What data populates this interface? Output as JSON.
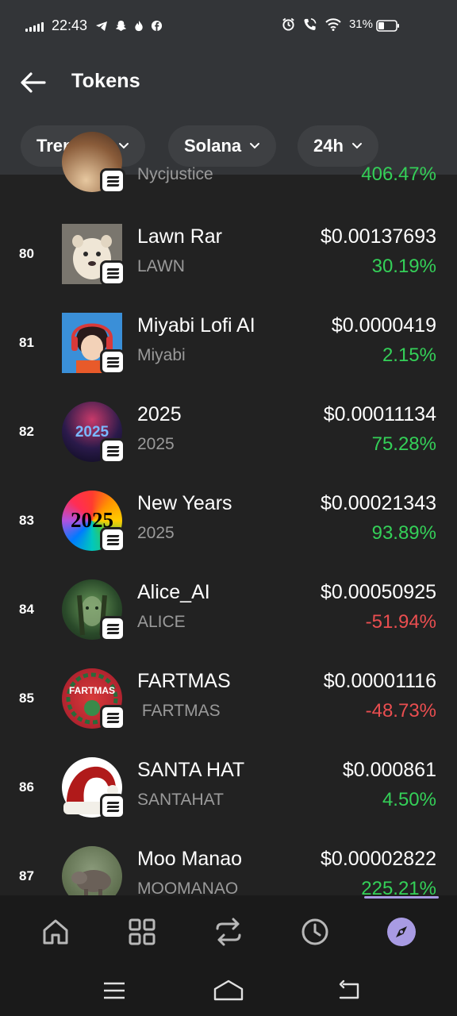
{
  "status_bar": {
    "time": "22:43",
    "battery": "31%",
    "icons": [
      "signal-icon",
      "telegram-icon",
      "snapchat-icon",
      "flame-icon",
      "facebook-icon",
      "alarm-icon",
      "wifi-call-icon",
      "wifi-icon",
      "battery-icon"
    ]
  },
  "header": {
    "title": "Tokens",
    "back_icon": "arrow-left-icon"
  },
  "filters": [
    {
      "label": "Trending"
    },
    {
      "label": "Solana"
    },
    {
      "label": "24h"
    }
  ],
  "tokens": [
    {
      "rank": "",
      "name": "",
      "symbol": "Nycjustice",
      "price": "",
      "change": "406.47%",
      "direction": "up"
    },
    {
      "rank": "80",
      "name": "Lawn Rar",
      "symbol": "LAWN",
      "price": "$0.00137693",
      "change": "30.19%",
      "direction": "up"
    },
    {
      "rank": "81",
      "name": "Miyabi Lofi AI",
      "symbol": "Miyabi",
      "price": "$0.0000419",
      "change": "2.15%",
      "direction": "up"
    },
    {
      "rank": "82",
      "name": "2025",
      "symbol": "2025",
      "price": "$0.00011134",
      "change": "75.28%",
      "direction": "up"
    },
    {
      "rank": "83",
      "name": "New Years",
      "symbol": "2025",
      "price": "$0.00021343",
      "change": "93.89%",
      "direction": "up"
    },
    {
      "rank": "84",
      "name": "Alice_AI",
      "symbol": "ALICE",
      "price": "$0.00050925",
      "change": "-51.94%",
      "direction": "down"
    },
    {
      "rank": "85",
      "name": "FARTMAS",
      "symbol": " FARTMAS",
      "price": "$0.00001116",
      "change": "-48.73%",
      "direction": "down"
    },
    {
      "rank": "86",
      "name": "SANTA HAT",
      "symbol": "SANTAHAT",
      "price": "$0.000861",
      "change": "4.50%",
      "direction": "up"
    },
    {
      "rank": "87",
      "name": "Moo Manao",
      "symbol": "MOOMANAO",
      "price": "$0.00002822",
      "change": "225.21%",
      "direction": "up"
    }
  ],
  "avatar_text": {
    "token_82": "2025",
    "token_83": "2025",
    "token_85": "FARTMAS"
  },
  "bottom_nav": [
    {
      "icon": "home-icon"
    },
    {
      "icon": "grid-icon"
    },
    {
      "icon": "swap-icon"
    },
    {
      "icon": "clock-icon"
    },
    {
      "icon": "compass-icon",
      "active": true
    }
  ],
  "system_nav": [
    "menu-icon",
    "home-outline-icon",
    "back-icon"
  ],
  "colors": {
    "positive": "#34d058",
    "negative": "#ea4e50",
    "accent": "#a89be3",
    "header_bg": "#333538"
  }
}
